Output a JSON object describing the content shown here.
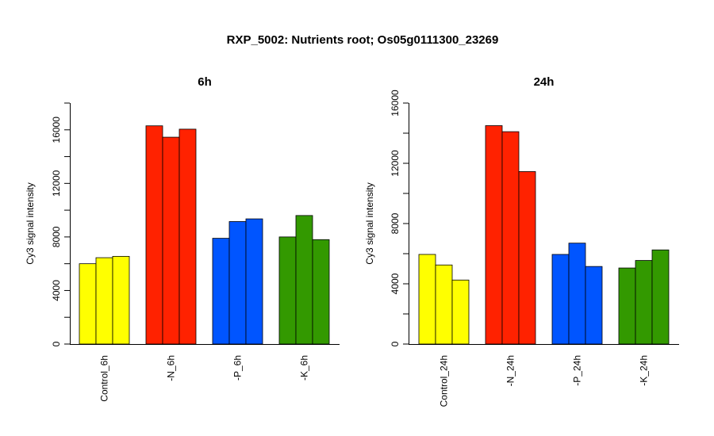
{
  "title": "RXP_5002: Nutrients root; Os05g0111300_23269",
  "chart_data": [
    {
      "type": "bar",
      "title": "6h",
      "ylabel": "Cy3 signal intensity",
      "xlabel": "",
      "ylim": [
        0,
        18000
      ],
      "yticks": [
        0,
        4000,
        8000,
        12000,
        16000
      ],
      "ytick_labels": [
        "0",
        "4000",
        "8000",
        "12000",
        "16000"
      ],
      "grid": false,
      "groups": [
        {
          "name": "Control_6h",
          "color": "#ffff00",
          "values": [
            6000,
            6450,
            6550
          ]
        },
        {
          "name": "-N_6h",
          "color": "#ff2200",
          "values": [
            16300,
            15450,
            16050
          ]
        },
        {
          "name": "-P_6h",
          "color": "#0055ff",
          "values": [
            7900,
            9150,
            9350
          ]
        },
        {
          "name": "-K_6h",
          "color": "#339900",
          "values": [
            8000,
            9600,
            7800
          ]
        }
      ]
    },
    {
      "type": "bar",
      "title": "24h",
      "ylabel": "Cy3 signal intensity",
      "xlabel": "",
      "ylim": [
        0,
        16000
      ],
      "yticks": [
        0,
        4000,
        8000,
        12000,
        16000
      ],
      "ytick_labels": [
        "0",
        "4000",
        "8000",
        "12000",
        "16000"
      ],
      "grid": false,
      "groups": [
        {
          "name": "Control_24h",
          "color": "#ffff00",
          "values": [
            5950,
            5250,
            4250
          ]
        },
        {
          "name": "-N_24h",
          "color": "#ff2200",
          "values": [
            14500,
            14100,
            11450
          ]
        },
        {
          "name": "-P_24h",
          "color": "#0055ff",
          "values": [
            5950,
            6700,
            5150
          ]
        },
        {
          "name": "-K_24h",
          "color": "#339900",
          "values": [
            5050,
            5550,
            6250
          ]
        }
      ]
    }
  ]
}
